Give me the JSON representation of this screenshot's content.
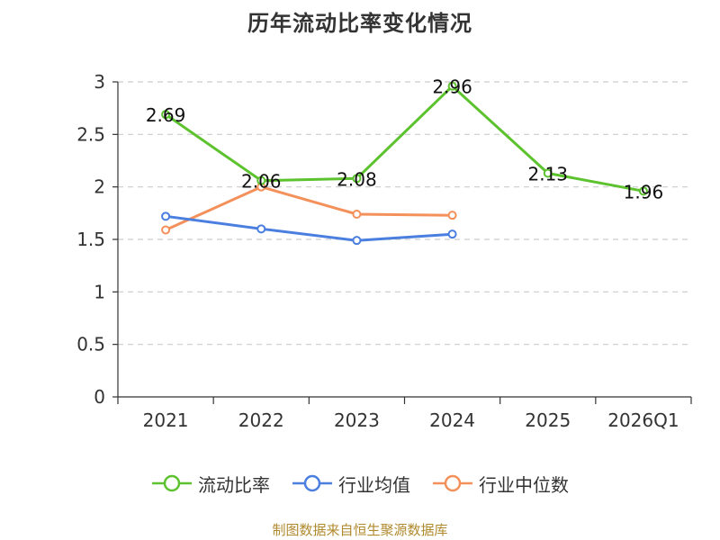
{
  "chart_data": {
    "type": "line",
    "title": "历年流动比率变化情况",
    "categories": [
      "2021",
      "2022",
      "2023",
      "2024",
      "2025",
      "2026Q1"
    ],
    "ylim": [
      0,
      3
    ],
    "yticks": [
      "0",
      "0.5",
      "1",
      "1.5",
      "2",
      "2.5",
      "3"
    ],
    "grid": true,
    "legend_position": "bottom",
    "series": [
      {
        "name": "流动比率",
        "color": "#5cc22e",
        "values": [
          2.69,
          2.06,
          2.08,
          2.96,
          2.13,
          1.96
        ],
        "labels": [
          "2.69",
          "2.06",
          "2.08",
          "2.96",
          "2.13",
          "1.96"
        ]
      },
      {
        "name": "行业均值",
        "color": "#4a7fe0",
        "values": [
          1.72,
          1.6,
          1.49,
          1.55,
          null,
          null
        ]
      },
      {
        "name": "行业中位数",
        "color": "#f4905a",
        "values": [
          1.59,
          2.0,
          1.74,
          1.73,
          null,
          null
        ]
      }
    ]
  },
  "footer": {
    "source": "制图数据来自恒生聚源数据库"
  }
}
